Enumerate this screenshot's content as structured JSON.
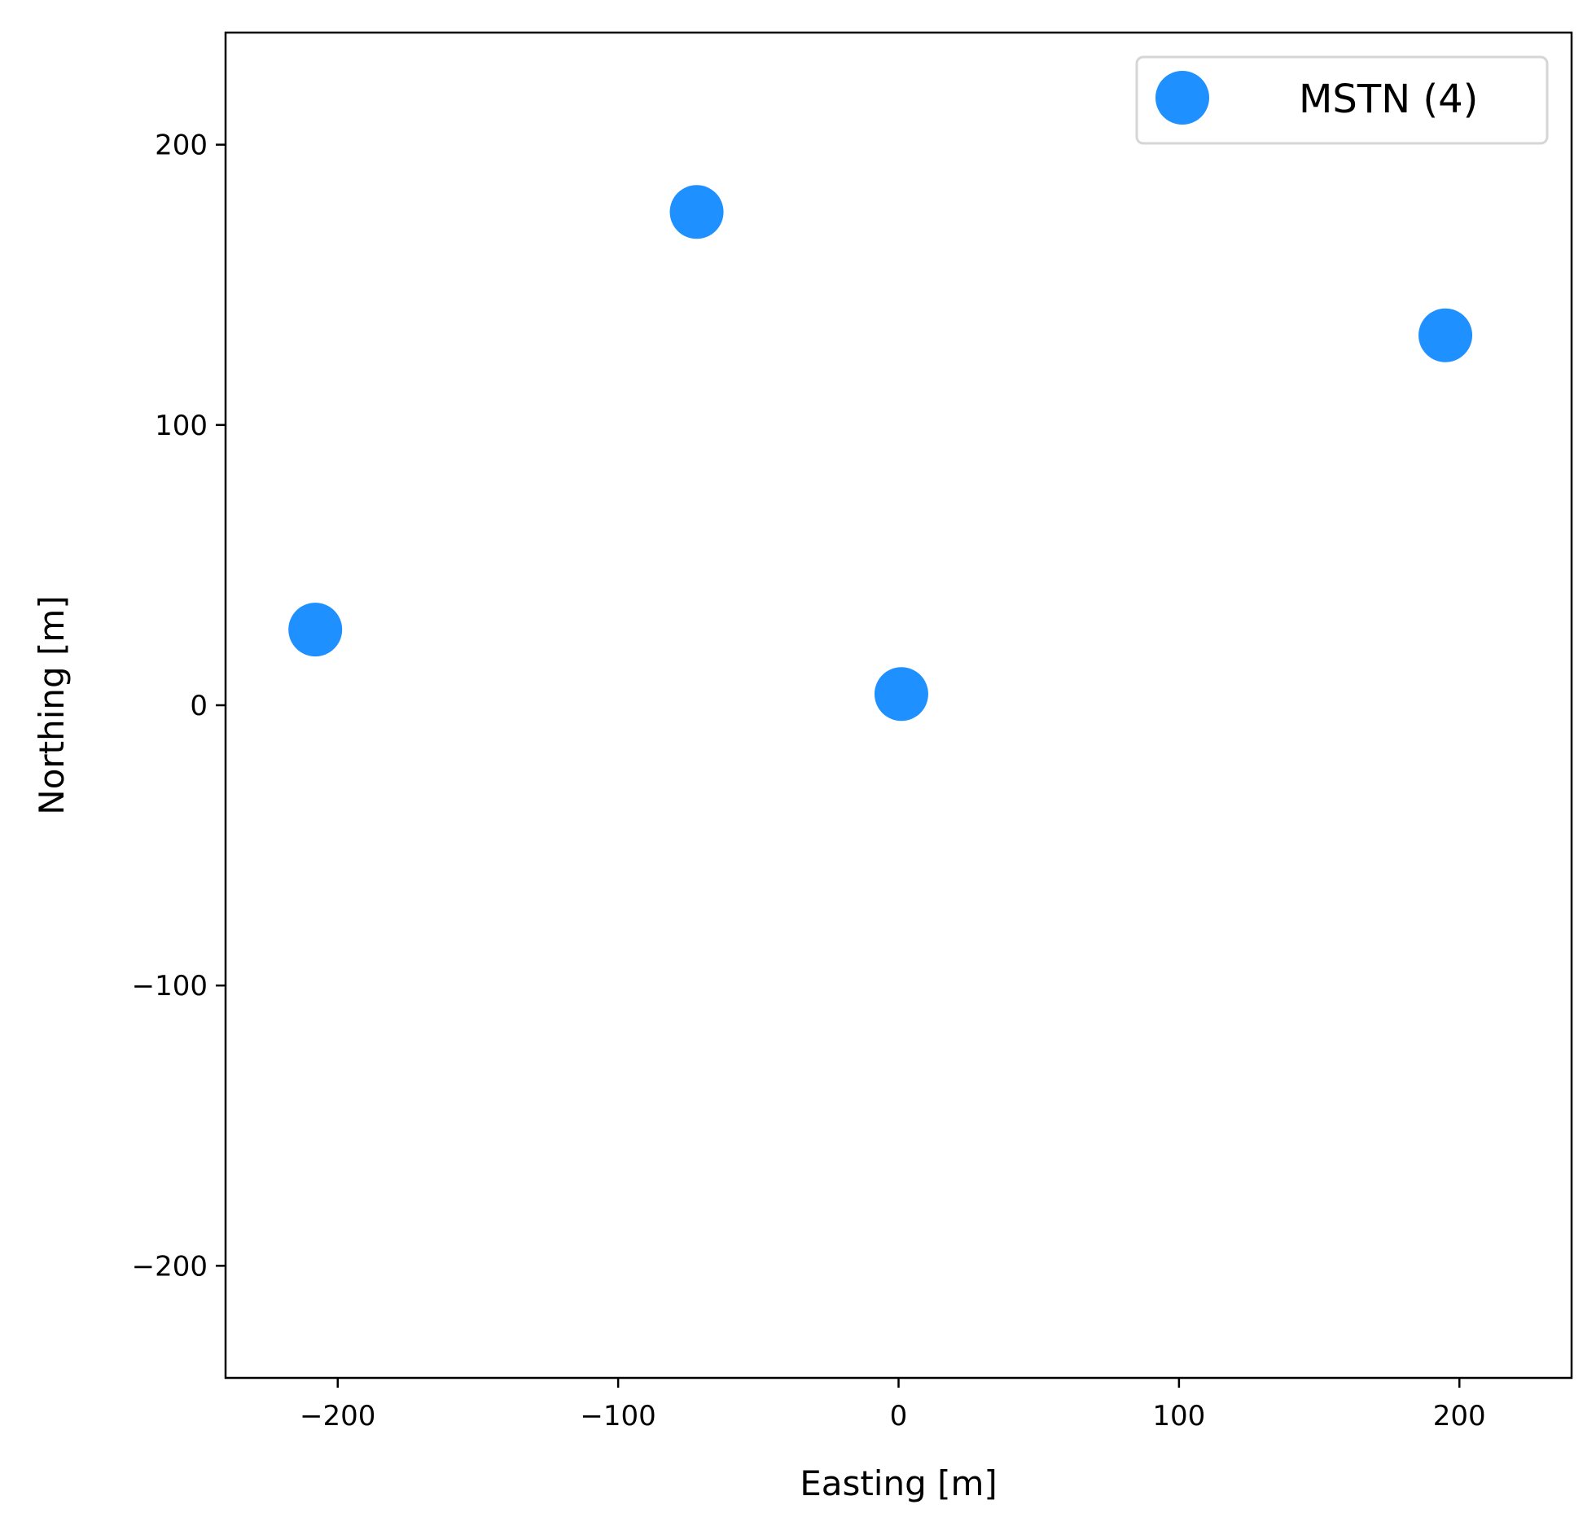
{
  "chart_data": {
    "type": "scatter",
    "xlabel": "Easting [m]",
    "ylabel": "Northing [m]",
    "xlim": [
      -240,
      240
    ],
    "ylim": [
      -240,
      240
    ],
    "xticks": [
      -200,
      -100,
      0,
      100,
      200
    ],
    "yticks": [
      -200,
      -100,
      0,
      100,
      200
    ],
    "grid": false,
    "legend_position": "top-right",
    "series": [
      {
        "name": "MSTN (4)",
        "color": "#1e90ff",
        "marker": "circle",
        "points": [
          {
            "x": -208,
            "y": 27
          },
          {
            "x": -72,
            "y": 176
          },
          {
            "x": 1,
            "y": 4
          },
          {
            "x": 195,
            "y": 132
          }
        ]
      }
    ]
  }
}
